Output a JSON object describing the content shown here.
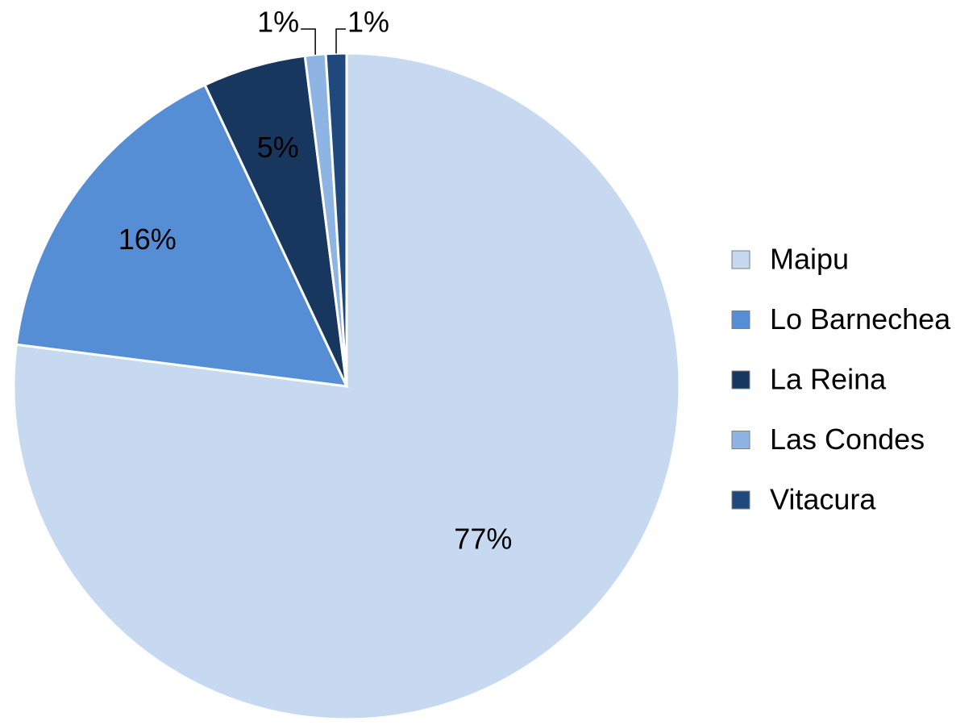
{
  "chart_data": {
    "type": "pie",
    "categories": [
      "Maipu",
      "Lo Barnechea",
      "La Reina",
      "Las Condes",
      "Vitacura"
    ],
    "values": [
      77,
      16,
      5,
      1,
      1
    ],
    "value_labels": [
      "77%",
      "16%",
      "5%",
      "1%",
      "1%"
    ],
    "colors": [
      "#c6d9f1",
      "#558ed5",
      "#17375e",
      "#8eb4e3",
      "#1f497d"
    ],
    "legend": "right"
  }
}
